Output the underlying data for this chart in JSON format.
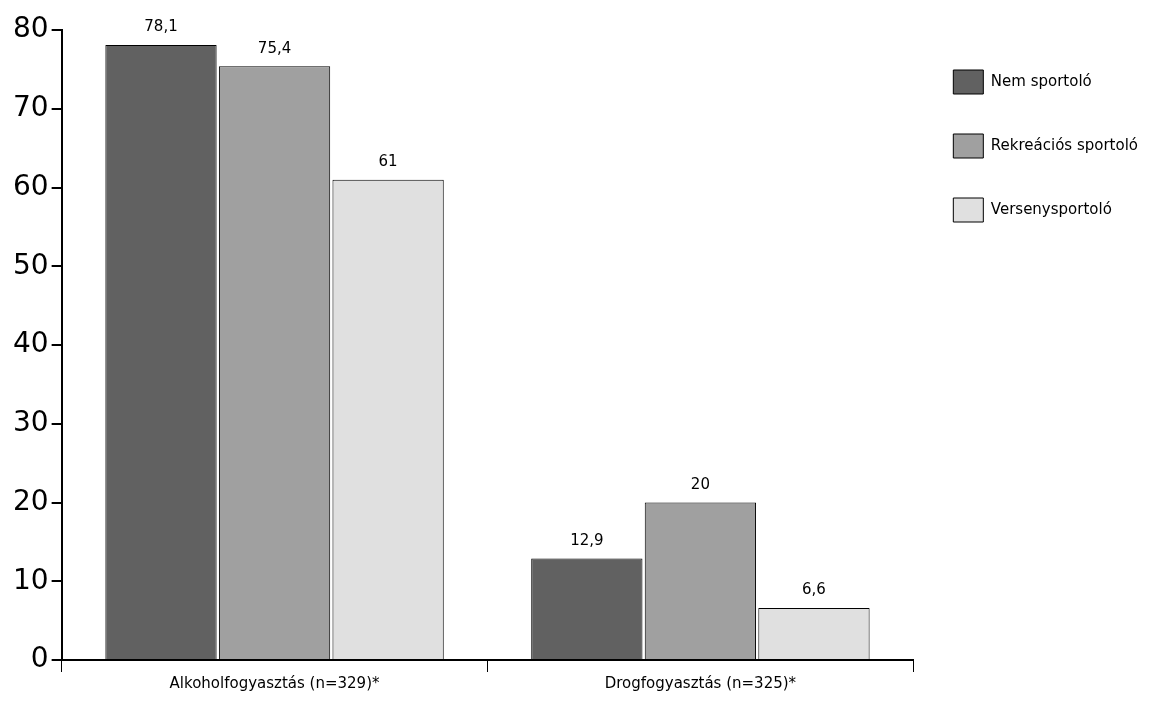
{
  "chart_data": {
    "type": "bar",
    "categories": [
      "Alkoholfogyasztás (n=329)*",
      "Drogfogyasztás (n=325)*"
    ],
    "series": [
      {
        "name": "Nem sportoló",
        "color": "#616161",
        "values": [
          78.1,
          12.9
        ],
        "value_labels": [
          "78,1",
          "12,9"
        ]
      },
      {
        "name": "Rekreációs sportoló",
        "color": "#a0a0a0",
        "values": [
          75.4,
          20
        ],
        "value_labels": [
          "75,4",
          "20"
        ]
      },
      {
        "name": "Versenysportoló",
        "color": "#e0e0e0",
        "values": [
          61,
          6.6
        ],
        "value_labels": [
          "61",
          "6,6"
        ]
      }
    ],
    "ylim": [
      0,
      80
    ],
    "yticks": [
      0,
      10,
      20,
      30,
      40,
      50,
      60,
      70,
      80
    ],
    "grid": false,
    "legend": "right"
  }
}
